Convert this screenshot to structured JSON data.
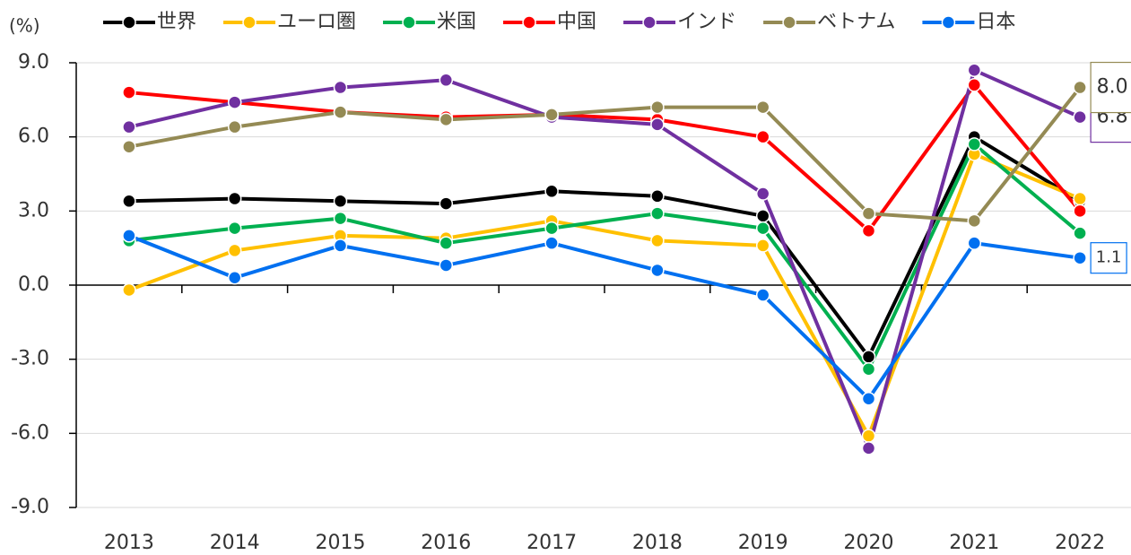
{
  "chart_data": {
    "type": "line",
    "y_label": "(%)",
    "categories": [
      "2013",
      "2014",
      "2015",
      "2016",
      "2017",
      "2018",
      "2019",
      "2020",
      "2021",
      "2022"
    ],
    "ylim": [
      -9,
      9
    ],
    "yticks": [
      {
        "value": -9,
        "label": "-9.0"
      },
      {
        "value": -6,
        "label": "-6.0"
      },
      {
        "value": -3,
        "label": "-3.0"
      },
      {
        "value": 0,
        "label": "0.0"
      },
      {
        "value": 3,
        "label": "3.0"
      },
      {
        "value": 6,
        "label": "6.0"
      },
      {
        "value": 9,
        "label": "9.0"
      }
    ],
    "grid": true,
    "legend": "top",
    "series": [
      {
        "name": "世界",
        "color": "#000000",
        "values": [
          3.4,
          3.5,
          3.4,
          3.3,
          3.8,
          3.6,
          2.8,
          -2.9,
          6.0,
          3.4
        ]
      },
      {
        "name": "ユーロ圏",
        "color": "#ffc000",
        "values": [
          -0.2,
          1.4,
          2.0,
          1.9,
          2.6,
          1.8,
          1.6,
          -6.1,
          5.3,
          3.5
        ]
      },
      {
        "name": "米国",
        "color": "#00b050",
        "values": [
          1.8,
          2.3,
          2.7,
          1.7,
          2.3,
          2.9,
          2.3,
          -3.4,
          5.7,
          2.1
        ]
      },
      {
        "name": "中国",
        "color": "#ff0000",
        "values": [
          7.8,
          7.4,
          7.0,
          6.8,
          6.9,
          6.7,
          6.0,
          2.2,
          8.1,
          3.0
        ]
      },
      {
        "name": "インド",
        "color": "#7030a0",
        "values": [
          6.4,
          7.4,
          8.0,
          8.3,
          6.8,
          6.5,
          3.7,
          -6.6,
          8.7,
          6.8
        ],
        "value_labels": [
          null,
          null,
          null,
          null,
          null,
          null,
          null,
          null,
          null,
          "6.8"
        ]
      },
      {
        "name": "ベトナム",
        "color": "#948a54",
        "values": [
          5.6,
          6.4,
          7.0,
          6.7,
          6.9,
          7.2,
          7.2,
          2.9,
          2.6,
          8.0
        ],
        "value_labels": [
          null,
          null,
          null,
          null,
          null,
          null,
          null,
          null,
          null,
          "8.0"
        ]
      },
      {
        "name": "日本",
        "color": "#0070f0",
        "values": [
          2.0,
          0.3,
          1.6,
          0.8,
          1.7,
          0.6,
          -0.4,
          -4.6,
          1.7,
          1.1
        ],
        "value_labels": [
          null,
          null,
          null,
          null,
          null,
          null,
          null,
          null,
          null,
          "1.1"
        ]
      }
    ]
  }
}
